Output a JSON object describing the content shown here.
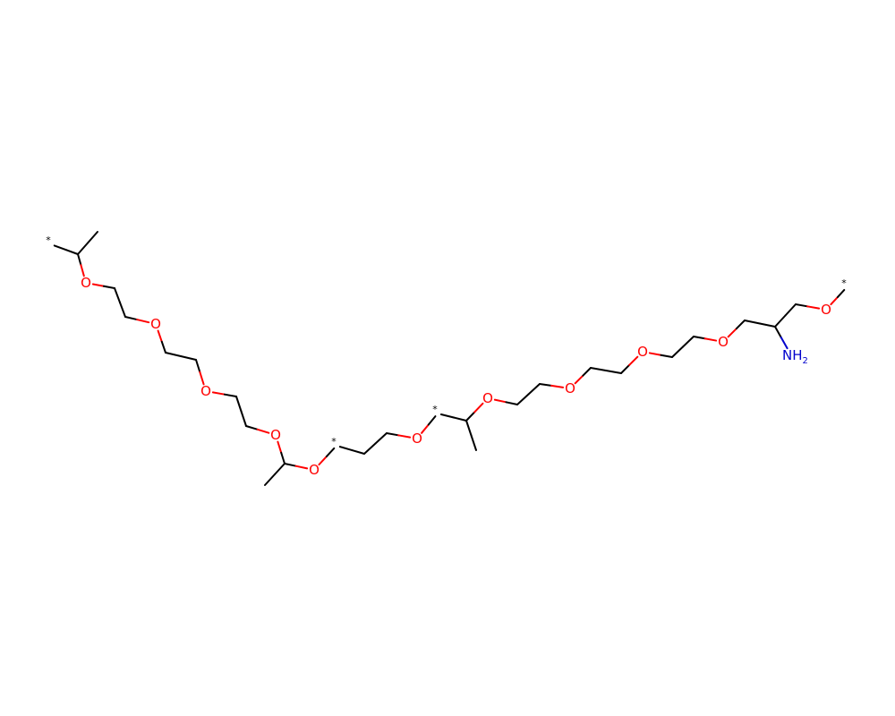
{
  "molecule": {
    "bond_color": "#000000",
    "oxygen_color": "#ff0000",
    "nitrogen_color": "#0000cc",
    "atoms": [
      {
        "id": "s1",
        "element": "*"
      },
      {
        "id": "c1",
        "element": "C"
      },
      {
        "id": "c1m",
        "element": "C"
      },
      {
        "id": "o1",
        "element": "O",
        "label": "O"
      },
      {
        "id": "c2",
        "element": "C"
      },
      {
        "id": "c3",
        "element": "C"
      },
      {
        "id": "o2",
        "element": "O",
        "label": "O"
      },
      {
        "id": "c4",
        "element": "C"
      },
      {
        "id": "c5",
        "element": "C"
      },
      {
        "id": "o3",
        "element": "O",
        "label": "O"
      },
      {
        "id": "c6",
        "element": "C"
      },
      {
        "id": "c7",
        "element": "C"
      },
      {
        "id": "o4",
        "element": "O",
        "label": "O"
      },
      {
        "id": "c8",
        "element": "C"
      },
      {
        "id": "c8m",
        "element": "C"
      },
      {
        "id": "o5",
        "element": "O",
        "label": "O"
      },
      {
        "id": "s2",
        "element": "*"
      },
      {
        "id": "c9",
        "element": "C"
      },
      {
        "id": "c10",
        "element": "C"
      },
      {
        "id": "o6",
        "element": "O",
        "label": "O"
      },
      {
        "id": "s3",
        "element": "*"
      },
      {
        "id": "c11",
        "element": "C"
      },
      {
        "id": "c11m",
        "element": "C"
      },
      {
        "id": "o7",
        "element": "O",
        "label": "O"
      },
      {
        "id": "c12",
        "element": "C"
      },
      {
        "id": "c13",
        "element": "C"
      },
      {
        "id": "o8",
        "element": "O",
        "label": "O"
      },
      {
        "id": "c14",
        "element": "C"
      },
      {
        "id": "c15",
        "element": "C"
      },
      {
        "id": "o9",
        "element": "O",
        "label": "O"
      },
      {
        "id": "c16",
        "element": "C"
      },
      {
        "id": "c17",
        "element": "C"
      },
      {
        "id": "o10",
        "element": "O",
        "label": "O"
      },
      {
        "id": "c18",
        "element": "C"
      },
      {
        "id": "c19",
        "element": "C"
      },
      {
        "id": "n1",
        "element": "N",
        "label": "NH",
        "sub": "2"
      },
      {
        "id": "c20",
        "element": "C"
      },
      {
        "id": "o11",
        "element": "O",
        "label": "O"
      },
      {
        "id": "s4",
        "element": "*"
      }
    ],
    "star_symbol": "*",
    "bonds": [
      [
        "s1",
        "c1"
      ],
      [
        "c1",
        "c1m"
      ],
      [
        "c1",
        "o1"
      ],
      [
        "o1",
        "c2"
      ],
      [
        "c2",
        "c3"
      ],
      [
        "c3",
        "o2"
      ],
      [
        "o2",
        "c4"
      ],
      [
        "c4",
        "c5"
      ],
      [
        "c5",
        "o3"
      ],
      [
        "o3",
        "c6"
      ],
      [
        "c6",
        "c7"
      ],
      [
        "c7",
        "o4"
      ],
      [
        "o4",
        "c8"
      ],
      [
        "c8",
        "c8m"
      ],
      [
        "c8",
        "o5"
      ],
      [
        "o5",
        "s2"
      ],
      [
        "s2",
        "c9"
      ],
      [
        "c9",
        "c10"
      ],
      [
        "c10",
        "o6"
      ],
      [
        "o6",
        "s3"
      ],
      [
        "s3",
        "c11"
      ],
      [
        "c11",
        "c11m"
      ],
      [
        "c11",
        "o7"
      ],
      [
        "o7",
        "c12"
      ],
      [
        "c12",
        "c13"
      ],
      [
        "c13",
        "o8"
      ],
      [
        "o8",
        "c14"
      ],
      [
        "c14",
        "c15"
      ],
      [
        "c15",
        "o9"
      ],
      [
        "o9",
        "c16"
      ],
      [
        "c16",
        "c17"
      ],
      [
        "c17",
        "o10"
      ],
      [
        "o10",
        "c18"
      ],
      [
        "c18",
        "c19"
      ],
      [
        "c19",
        "n1"
      ],
      [
        "c19",
        "c20"
      ],
      [
        "c20",
        "o11"
      ],
      [
        "o11",
        "s4"
      ]
    ]
  }
}
